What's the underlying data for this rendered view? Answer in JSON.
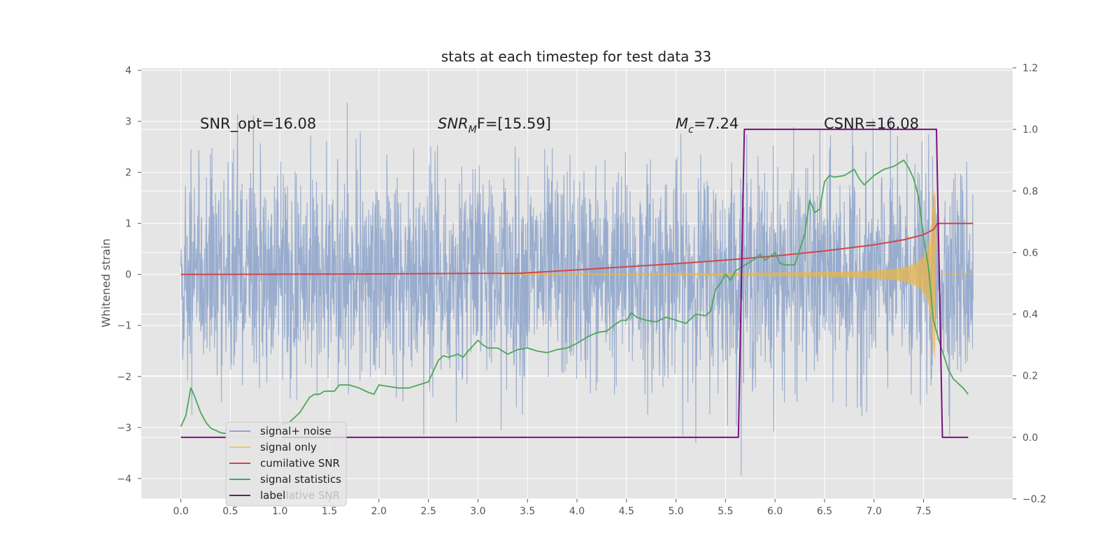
{
  "chart_data": {
    "type": "line",
    "title": "stats at each timestep for test data 33",
    "xlabel": "",
    "ylabel": "Whitened strain",
    "xlim": [
      -0.4,
      8.4
    ],
    "ylim": [
      -4.4,
      4.05
    ],
    "y2lim": [
      -0.2,
      1.2
    ],
    "xticks": [
      "0.0",
      "0.5",
      "1.0",
      "1.5",
      "2.0",
      "2.5",
      "3.0",
      "3.5",
      "4.0",
      "4.5",
      "5.0",
      "5.5",
      "6.0",
      "6.5",
      "7.0",
      "7.5"
    ],
    "yticks": [
      "4",
      "3",
      "2",
      "1",
      "0",
      "−1",
      "−2",
      "−3",
      "−4"
    ],
    "y2ticks": [
      "1.2",
      "1.0",
      "0.8",
      "0.6",
      "0.4",
      "0.2",
      "0.0",
      "−0.2"
    ],
    "grid": true,
    "colors": {
      "background": "#e5e5e5",
      "noise": "#8fa5cb",
      "signal": "#e8b64a",
      "cumulative": "#d0464a",
      "statistics": "#4aa85a",
      "label": "#7b0f7e"
    },
    "annotations": {
      "snr_opt": "SNR_opt=16.08",
      "snr_mf_symbol": "SNR",
      "snr_mf_sub": "M",
      "snr_mf_rest": "F=[15.59]",
      "mc_symbol": "M",
      "mc_sub": "c",
      "mc_rest": "=7.24",
      "csnr": "CSNR=16.08"
    },
    "legend": {
      "location": "lower-left",
      "entries": [
        "signal+ noise",
        "signal only",
        "cumilative SNR",
        "signal statistics",
        "label"
      ],
      "hidden_text": "cumilative SNR"
    },
    "series": [
      {
        "name": "signal+ noise",
        "axis": "left",
        "description": "whitened noise, amplitude ~±3, t = 0 to 8"
      },
      {
        "name": "signal only",
        "axis": "left",
        "description": "chirp growing from ~3.3 to merger ~7.6, peak ~1.6"
      },
      {
        "name": "cumilative SNR",
        "axis": "left",
        "x": [
          0,
          1,
          2,
          3,
          3.4,
          4,
          4.5,
          5,
          5.5,
          6,
          6.5,
          7,
          7.3,
          7.5,
          7.6,
          7.64,
          8
        ],
        "y": [
          0,
          0.005,
          0.01,
          0.02,
          0.02,
          0.09,
          0.15,
          0.21,
          0.28,
          0.36,
          0.46,
          0.58,
          0.68,
          0.78,
          0.88,
          1.0,
          1.0
        ]
      },
      {
        "name": "signal statistics",
        "axis": "right",
        "x": [
          0,
          0.05,
          0.1,
          0.13,
          0.2,
          0.25,
          0.3,
          0.4,
          0.5,
          0.6,
          0.7,
          0.8,
          0.9,
          1.0,
          1.1,
          1.2,
          1.3,
          1.35,
          1.4,
          1.45,
          1.5,
          1.55,
          1.6,
          1.7,
          1.8,
          1.9,
          1.95,
          2.0,
          2.1,
          2.2,
          2.3,
          2.4,
          2.5,
          2.55,
          2.6,
          2.65,
          2.7,
          2.8,
          2.85,
          2.9,
          3.0,
          3.05,
          3.1,
          3.2,
          3.3,
          3.4,
          3.5,
          3.6,
          3.7,
          3.8,
          3.9,
          4.0,
          4.1,
          4.2,
          4.3,
          4.4,
          4.45,
          4.5,
          4.55,
          4.6,
          4.7,
          4.8,
          4.9,
          5.0,
          5.1,
          5.2,
          5.3,
          5.35,
          5.4,
          5.45,
          5.5,
          5.55,
          5.6,
          5.65,
          5.7,
          5.8,
          5.85,
          5.9,
          6.0,
          6.05,
          6.1,
          6.2,
          6.3,
          6.35,
          6.4,
          6.45,
          6.5,
          6.55,
          6.6,
          6.7,
          6.8,
          6.85,
          6.9,
          7.0,
          7.1,
          7.2,
          7.3,
          7.35,
          7.4,
          7.45,
          7.5,
          7.55,
          7.6,
          7.65,
          7.7,
          7.75,
          7.8,
          7.9,
          7.95
        ],
        "y": [
          0.035,
          0.07,
          0.16,
          0.14,
          0.08,
          0.05,
          0.03,
          0.015,
          0.01,
          0.005,
          0.01,
          0.02,
          0.03,
          0.04,
          0.05,
          0.08,
          0.13,
          0.14,
          0.14,
          0.15,
          0.15,
          0.15,
          0.17,
          0.17,
          0.16,
          0.145,
          0.14,
          0.17,
          0.165,
          0.16,
          0.16,
          0.17,
          0.18,
          0.215,
          0.25,
          0.265,
          0.26,
          0.27,
          0.26,
          0.28,
          0.315,
          0.3,
          0.29,
          0.29,
          0.27,
          0.285,
          0.29,
          0.28,
          0.275,
          0.285,
          0.29,
          0.305,
          0.325,
          0.34,
          0.345,
          0.37,
          0.38,
          0.38,
          0.405,
          0.39,
          0.38,
          0.375,
          0.39,
          0.38,
          0.37,
          0.4,
          0.395,
          0.41,
          0.48,
          0.5,
          0.53,
          0.51,
          0.54,
          0.55,
          0.56,
          0.58,
          0.595,
          0.575,
          0.6,
          0.565,
          0.56,
          0.56,
          0.66,
          0.77,
          0.73,
          0.74,
          0.83,
          0.85,
          0.845,
          0.85,
          0.87,
          0.84,
          0.82,
          0.85,
          0.87,
          0.88,
          0.9,
          0.875,
          0.84,
          0.78,
          0.65,
          0.55,
          0.38,
          0.32,
          0.27,
          0.22,
          0.19,
          0.16,
          0.14
        ]
      },
      {
        "name": "label",
        "axis": "right",
        "x": [
          0,
          5.63,
          5.69,
          7.63,
          7.69,
          7.95
        ],
        "y": [
          0,
          0,
          1,
          1,
          0,
          0
        ]
      }
    ]
  }
}
